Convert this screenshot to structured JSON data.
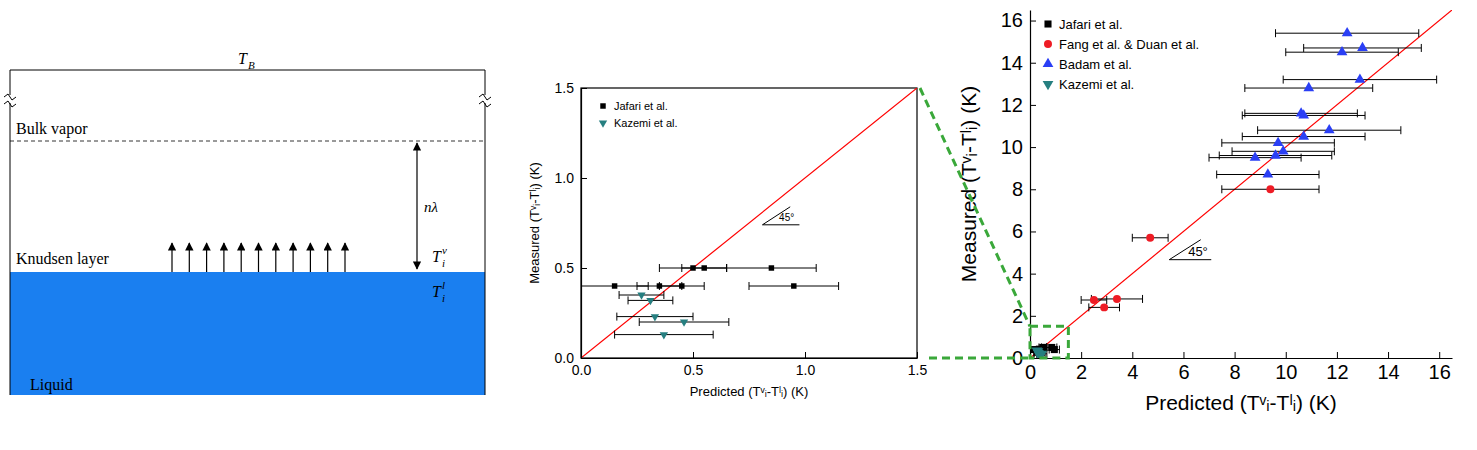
{
  "diagram": {
    "bulk_temperature": {
      "main": "T",
      "sub": "B"
    },
    "bulk_label": "Bulk vapor",
    "distance_label": "nλ",
    "knudsen_label": "Knudsen layer",
    "vapor_interface_temperature": {
      "main": "T",
      "sub": "i",
      "sup": "v"
    },
    "liquid_interface_temperature": {
      "main": "T",
      "sub": "i",
      "sup": "l"
    },
    "liquid_label": "Liquid"
  },
  "chart_data": [
    {
      "type": "scatter",
      "x_label": "Predicted (Tᵛᵢ-Tˡᵢ) (K)",
      "y_label": "Measured (Tᵛᵢ-Tˡᵢ) (K)",
      "xlim": [
        0,
        1.5
      ],
      "ylim": [
        0,
        1.5
      ],
      "xticks": [
        {
          "value": 0,
          "label": "0.0"
        },
        {
          "value": 0.5,
          "label": "0.5"
        },
        {
          "value": 1,
          "label": "1.0"
        },
        {
          "value": 1.5,
          "label": "1.5"
        }
      ],
      "yticks": [
        {
          "value": 0,
          "label": "0.0"
        },
        {
          "value": 0.5,
          "label": "0.5"
        },
        {
          "value": 1,
          "label": "1.0"
        },
        {
          "value": 1.5,
          "label": "1.5"
        }
      ],
      "legend": "top-left",
      "annotation": "45°",
      "reference_line": {
        "x": [
          0,
          1.5
        ],
        "y": [
          0,
          1.5
        ],
        "color": "#ff0000"
      },
      "series": [
        {
          "name": "Jafari et al.",
          "color": "#000000",
          "marker": "square",
          "x": [
            0.15,
            0.35,
            0.45,
            0.5,
            0.55,
            0.85,
            0.95
          ],
          "values": [
            0.4,
            0.4,
            0.4,
            0.5,
            0.5,
            0.5,
            0.4
          ],
          "x_error": [
            0.15,
            0.1,
            0.1,
            0.15,
            0.1,
            0.2,
            0.2
          ]
        },
        {
          "name": "Kazemi et al.",
          "color": "#267f80",
          "marker": "triangle-down",
          "x": [
            0.27,
            0.31,
            0.33,
            0.46,
            0.37
          ],
          "values": [
            0.35,
            0.32,
            0.23,
            0.2,
            0.13
          ],
          "x_error": [
            0.1,
            0.1,
            0.17,
            0.2,
            0.22
          ]
        }
      ]
    },
    {
      "type": "scatter",
      "x_label": "Predicted (Tᵛᵢ-Tˡᵢ) (K)",
      "y_label": "Measured (Tᵛᵢ-Tˡᵢ) (K)",
      "xlim": [
        0,
        16.5
      ],
      "ylim": [
        0,
        16.5
      ],
      "xticks": [
        0,
        2,
        4,
        6,
        8,
        10,
        12,
        14,
        16
      ],
      "yticks": [
        0,
        2,
        4,
        6,
        8,
        10,
        12,
        14,
        16
      ],
      "legend": "top-left",
      "annotation": "45°",
      "reference_line": {
        "x": [
          0,
          16.5
        ],
        "y": [
          0,
          16.5
        ],
        "color": "#ff0000"
      },
      "series": [
        {
          "name": "Jafari et al.",
          "color": "#000000",
          "marker": "square",
          "x": [
            0.15,
            0.35,
            0.45,
            0.5,
            0.55,
            0.85,
            0.95
          ],
          "values": [
            0.4,
            0.4,
            0.4,
            0.5,
            0.5,
            0.5,
            0.4
          ],
          "x_error": [
            0.15,
            0.1,
            0.1,
            0.15,
            0.1,
            0.2,
            0.2
          ]
        },
        {
          "name": "Fang et al. & Duan et al.",
          "color": "#ee1c25",
          "marker": "circle",
          "x": [
            9.4,
            4.7,
            2.5,
            3.4,
            2.9
          ],
          "values": [
            8.0,
            5.7,
            2.75,
            2.8,
            2.4
          ],
          "x_error": [
            1.9,
            0.7,
            0.5,
            1.0,
            0.6
          ]
        },
        {
          "name": "Badam et al.",
          "color": "#2a3ff5",
          "marker": "triangle",
          "x": [
            12.4,
            13.0,
            12.2,
            12.9,
            10.9,
            10.6,
            10.7,
            11.7,
            10.7,
            9.7,
            9.9,
            9.6,
            8.8,
            9.3
          ],
          "values": [
            15.4,
            14.7,
            14.5,
            13.2,
            12.8,
            11.6,
            11.5,
            10.8,
            10.5,
            10.2,
            9.8,
            9.6,
            9.5,
            8.7
          ],
          "x_error": [
            2.8,
            2.3,
            2.2,
            3.0,
            2.5,
            2.2,
            2.4,
            2.8,
            2.4,
            2.2,
            2.0,
            2.2,
            1.8,
            2.0
          ]
        },
        {
          "name": "Kazemi et al.",
          "color": "#267f80",
          "marker": "triangle-down",
          "x": [
            0.27,
            0.31,
            0.33,
            0.46,
            0.37
          ],
          "values": [
            0.35,
            0.32,
            0.23,
            0.2,
            0.13
          ],
          "x_error": [
            0.1,
            0.1,
            0.17,
            0.2,
            0.22
          ]
        }
      ]
    }
  ]
}
